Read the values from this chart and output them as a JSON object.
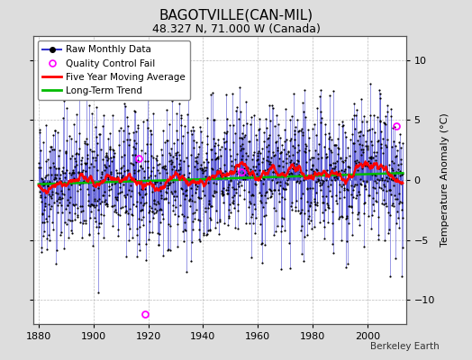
{
  "title": "BAGOTVILLE(CAN-MIL)",
  "subtitle": "48.327 N, 71.000 W (Canada)",
  "ylabel": "Temperature Anomaly (°C)",
  "credit": "Berkeley Earth",
  "xlim": [
    1878,
    2014
  ],
  "ylim": [
    -12,
    12
  ],
  "yticks": [
    -10,
    -5,
    0,
    5,
    10
  ],
  "xticks": [
    1880,
    1900,
    1920,
    1940,
    1960,
    1980,
    2000
  ],
  "bg_color": "#dddddd",
  "plot_bg_color": "#ffffff",
  "raw_line_color": "#3333cc",
  "raw_dot_color": "#000000",
  "ma_color": "#ff0000",
  "trend_color": "#00bb00",
  "qc_fail_color": "#ff00ff",
  "seed": 42,
  "n_months": 1596,
  "start_year": 1880.0,
  "noise_std": 2.8,
  "ar_coef": 0.15,
  "trend_slope": 0.007,
  "trend_intercept": -0.35,
  "ma_window": 60,
  "qc_fail_points": [
    {
      "year": 1918.75,
      "value": -11.2
    },
    {
      "year": 1916.5,
      "value": 1.8
    },
    {
      "year": 1954.0,
      "value": 0.7
    },
    {
      "year": 2010.5,
      "value": 4.5
    }
  ],
  "title_fontsize": 11,
  "subtitle_fontsize": 9,
  "ylabel_fontsize": 8,
  "tick_fontsize": 8,
  "legend_fontsize": 7.5,
  "credit_fontsize": 7.5
}
